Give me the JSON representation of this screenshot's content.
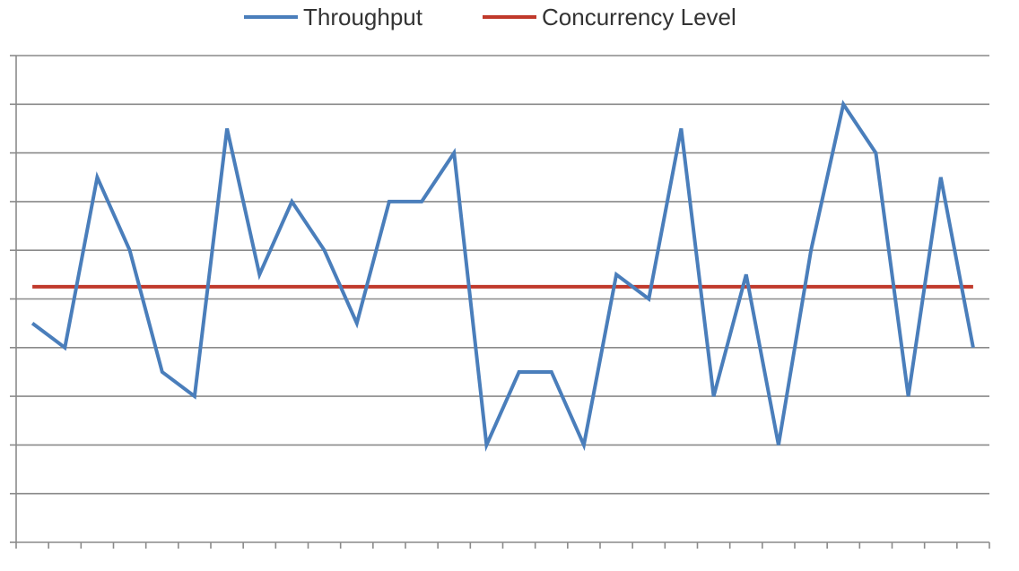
{
  "chart_data": {
    "type": "line",
    "legend_position": "top",
    "grid": true,
    "ylim": [
      0,
      10
    ],
    "x": [
      1,
      2,
      3,
      4,
      5,
      6,
      7,
      8,
      9,
      10,
      11,
      12,
      13,
      14,
      15,
      16,
      17,
      18,
      19,
      20,
      21,
      22,
      23,
      24,
      25,
      26,
      27,
      28,
      29,
      30
    ],
    "series": [
      {
        "name": "Throughput",
        "color": "#4a7ebb",
        "values": [
          4.5,
          4.0,
          7.5,
          6.0,
          3.5,
          3.0,
          8.5,
          5.5,
          7.0,
          6.0,
          4.5,
          7.0,
          7.0,
          8.0,
          2.0,
          3.5,
          3.5,
          2.0,
          5.5,
          5.0,
          8.5,
          3.0,
          5.5,
          2.0,
          6.0,
          9.0,
          8.0,
          3.0,
          7.5,
          4.0
        ]
      },
      {
        "name": "Concurrency Level",
        "color": "#c0392b",
        "values": [
          5.25,
          5.25,
          5.25,
          5.25,
          5.25,
          5.25,
          5.25,
          5.25,
          5.25,
          5.25,
          5.25,
          5.25,
          5.25,
          5.25,
          5.25,
          5.25,
          5.25,
          5.25,
          5.25,
          5.25,
          5.25,
          5.25,
          5.25,
          5.25,
          5.25,
          5.25,
          5.25,
          5.25,
          5.25,
          5.25
        ]
      }
    ]
  }
}
